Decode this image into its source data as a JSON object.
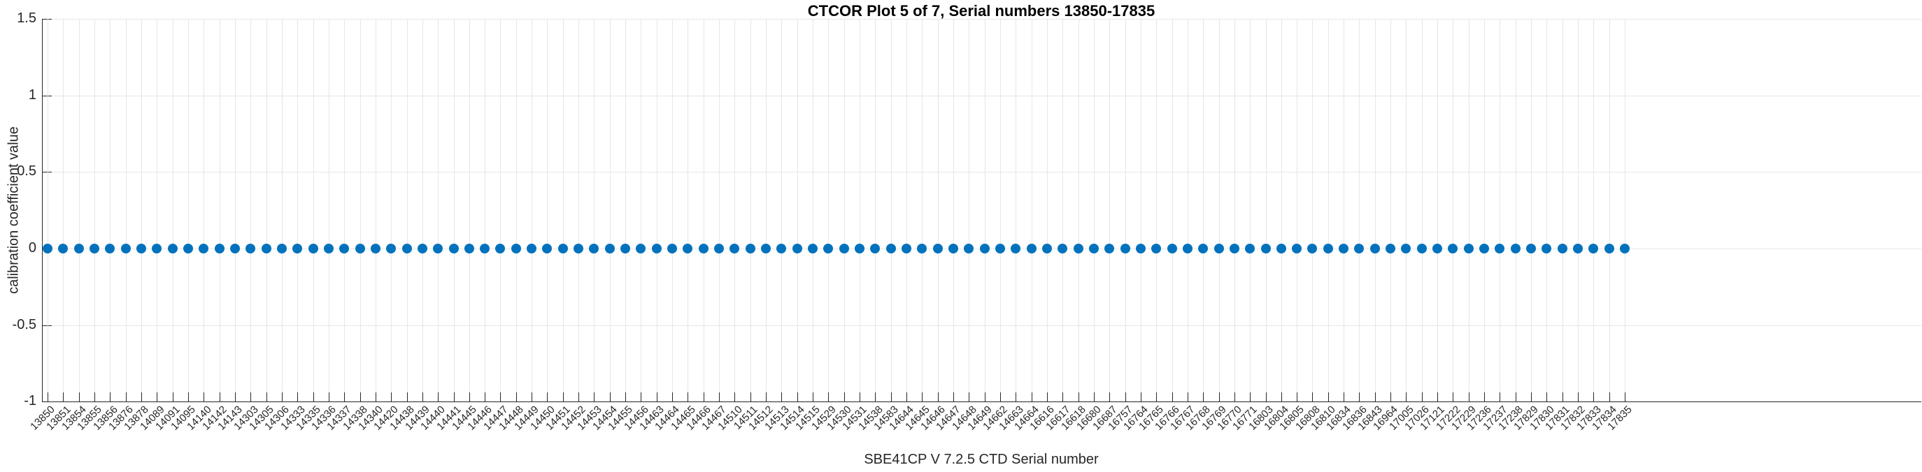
{
  "chart": {
    "title": "CTCOR Plot 5 of 7, Serial numbers 13850-17835",
    "xlabel": "SBE41CP V 7.2.5 CTD Serial number",
    "ylabel": "calibration coefficient value"
  },
  "chart_data": {
    "type": "scatter",
    "title": "CTCOR Plot 5 of 7, Serial numbers 13850-17835",
    "xlabel": "SBE41CP V 7.2.5 CTD Serial number",
    "ylabel": "calibration coefficient value",
    "marker_color": "#0072BD",
    "grid": true,
    "ylim": [
      -1,
      1.5
    ],
    "yticks": [
      1.5,
      1,
      0.5,
      0,
      -0.5,
      -1
    ],
    "ytick_labels": [
      "1.5",
      "1",
      "0.5",
      "0",
      "-0.5",
      "-1"
    ],
    "categories": [
      "13850",
      "13851",
      "13854",
      "13855",
      "13856",
      "13876",
      "13878",
      "14089",
      "14091",
      "14095",
      "14140",
      "14142",
      "14143",
      "14303",
      "14305",
      "14306",
      "14333",
      "14335",
      "14336",
      "14337",
      "14338",
      "14340",
      "14420",
      "14438",
      "14439",
      "14440",
      "14441",
      "14445",
      "14446",
      "14447",
      "14448",
      "14449",
      "14450",
      "14451",
      "14452",
      "14453",
      "14454",
      "14455",
      "14456",
      "14463",
      "14464",
      "14465",
      "14466",
      "14467",
      "14510",
      "14511",
      "14512",
      "14513",
      "14514",
      "14515",
      "14529",
      "14530",
      "14531",
      "14538",
      "14583",
      "14644",
      "14645",
      "14646",
      "14647",
      "14648",
      "14649",
      "14662",
      "14663",
      "14664",
      "16616",
      "16617",
      "16618",
      "16680",
      "16687",
      "16757",
      "16764",
      "16765",
      "16766",
      "16767",
      "16768",
      "16769",
      "16770",
      "16771",
      "16803",
      "16804",
      "16805",
      "16808",
      "16810",
      "16834",
      "16836",
      "16843",
      "16964",
      "17005",
      "17026",
      "17121",
      "17222",
      "17229",
      "17236",
      "17237",
      "17238",
      "17829",
      "17830",
      "17831",
      "17832",
      "17833",
      "17834",
      "17835"
    ],
    "values": [
      0,
      0,
      0,
      0,
      0,
      0,
      0,
      0,
      0,
      0,
      0,
      0,
      0,
      0,
      0,
      0,
      0,
      0,
      0,
      0,
      0,
      0,
      0,
      0,
      0,
      0,
      0,
      0,
      0,
      0,
      0,
      0,
      0,
      0,
      0,
      0,
      0,
      0,
      0,
      0,
      0,
      0,
      0,
      0,
      0,
      0,
      0,
      0,
      0,
      0,
      0,
      0,
      0,
      0,
      0,
      0,
      0,
      0,
      0,
      0,
      0,
      0,
      0,
      0,
      0,
      0,
      0,
      0,
      0,
      0,
      0,
      0,
      0,
      0,
      0,
      0,
      0,
      0,
      0,
      0,
      0,
      0,
      0,
      0,
      0,
      0,
      0,
      0,
      0,
      0,
      0,
      0,
      0,
      0,
      0,
      0,
      0,
      0,
      0,
      0,
      0,
      0
    ]
  }
}
